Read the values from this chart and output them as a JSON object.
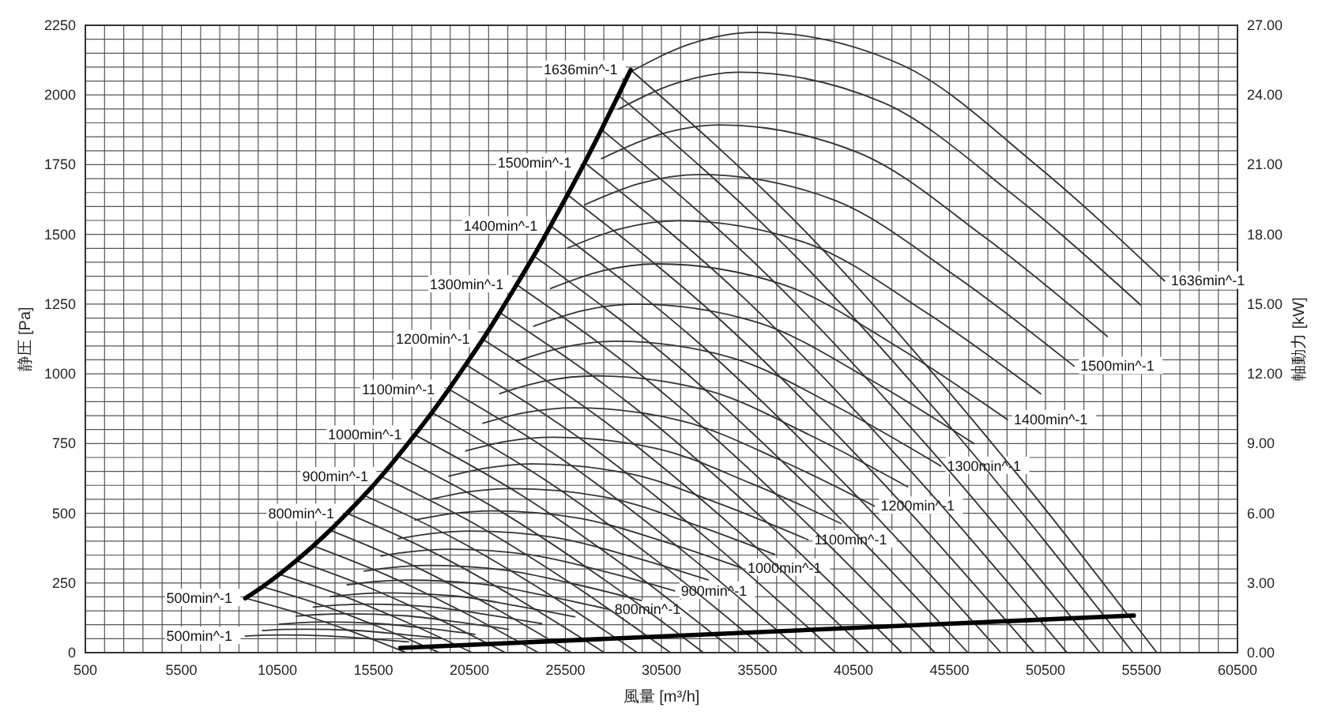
{
  "chart_data": {
    "type": "line",
    "xlabel": "風量 [m³/h]",
    "ylabel": "静圧 [Pa]",
    "y2label": "軸動力 [kW]",
    "grid": true,
    "xlim": [
      500,
      60500
    ],
    "ylim": [
      0,
      2250
    ],
    "y2lim": [
      0,
      27
    ],
    "xticks": [
      500,
      {
        "value": 1500,
        "label": null
      },
      {
        "value": 2500,
        "label": null
      },
      {
        "value": 3500,
        "label": null
      },
      {
        "value": 4500,
        "label": null
      },
      5500,
      {
        "value": 6500,
        "label": null
      },
      {
        "value": 7500,
        "label": null
      },
      {
        "value": 8500,
        "label": null
      },
      {
        "value": 9500,
        "label": null
      },
      10500,
      {
        "value": 11500,
        "label": null
      },
      {
        "value": 12500,
        "label": null
      },
      {
        "value": 13500,
        "label": null
      },
      {
        "value": 14500,
        "label": null
      },
      15500,
      {
        "value": 16500,
        "label": null
      },
      {
        "value": 17500,
        "label": null
      },
      {
        "value": 18500,
        "label": null
      },
      {
        "value": 19500,
        "label": null
      },
      20500,
      {
        "value": 21500,
        "label": null
      },
      {
        "value": 22500,
        "label": null
      },
      {
        "value": 23500,
        "label": null
      },
      {
        "value": 24500,
        "label": null
      },
      25500,
      {
        "value": 26500,
        "label": null
      },
      {
        "value": 27500,
        "label": null
      },
      {
        "value": 28500,
        "label": null
      },
      {
        "value": 29500,
        "label": null
      },
      30500,
      {
        "value": 31500,
        "label": null
      },
      {
        "value": 32500,
        "label": null
      },
      {
        "value": 33500,
        "label": null
      },
      {
        "value": 34500,
        "label": null
      },
      35500,
      {
        "value": 36500,
        "label": null
      },
      {
        "value": 37500,
        "label": null
      },
      {
        "value": 38500,
        "label": null
      },
      {
        "value": 39500,
        "label": null
      },
      40500,
      {
        "value": 41500,
        "label": null
      },
      {
        "value": 42500,
        "label": null
      },
      {
        "value": 43500,
        "label": null
      },
      {
        "value": 44500,
        "label": null
      },
      45500,
      {
        "value": 46500,
        "label": null
      },
      {
        "value": 47500,
        "label": null
      },
      {
        "value": 48500,
        "label": null
      },
      {
        "value": 49500,
        "label": null
      },
      50500,
      {
        "value": 51500,
        "label": null
      },
      {
        "value": 52500,
        "label": null
      },
      {
        "value": 53500,
        "label": null
      },
      {
        "value": 54500,
        "label": null
      },
      55500,
      {
        "value": 56500,
        "label": null
      },
      {
        "value": 57500,
        "label": null
      },
      {
        "value": 58500,
        "label": null
      },
      {
        "value": 59500,
        "label": null
      },
      60500
    ],
    "yticks": [
      0,
      {
        "value": 50,
        "label": null
      },
      {
        "value": 100,
        "label": null
      },
      {
        "value": 150,
        "label": null
      },
      {
        "value": 200,
        "label": null
      },
      250,
      {
        "value": 300,
        "label": null
      },
      {
        "value": 350,
        "label": null
      },
      {
        "value": 400,
        "label": null
      },
      {
        "value": 450,
        "label": null
      },
      500,
      {
        "value": 550,
        "label": null
      },
      {
        "value": 600,
        "label": null
      },
      {
        "value": 650,
        "label": null
      },
      {
        "value": 700,
        "label": null
      },
      750,
      {
        "value": 800,
        "label": null
      },
      {
        "value": 850,
        "label": null
      },
      {
        "value": 900,
        "label": null
      },
      {
        "value": 950,
        "label": null
      },
      1000,
      {
        "value": 1050,
        "label": null
      },
      {
        "value": 1100,
        "label": null
      },
      {
        "value": 1150,
        "label": null
      },
      {
        "value": 1200,
        "label": null
      },
      1250,
      {
        "value": 1300,
        "label": null
      },
      {
        "value": 1350,
        "label": null
      },
      {
        "value": 1400,
        "label": null
      },
      {
        "value": 1450,
        "label": null
      },
      1500,
      {
        "value": 1550,
        "label": null
      },
      {
        "value": 1600,
        "label": null
      },
      {
        "value": 1650,
        "label": null
      },
      {
        "value": 1700,
        "label": null
      },
      1750,
      {
        "value": 1800,
        "label": null
      },
      {
        "value": 1850,
        "label": null
      },
      {
        "value": 1900,
        "label": null
      },
      {
        "value": 1950,
        "label": null
      },
      2000,
      {
        "value": 2050,
        "label": null
      },
      {
        "value": 2100,
        "label": null
      },
      {
        "value": 2150,
        "label": null
      },
      {
        "value": 2200,
        "label": null
      },
      2250
    ],
    "y2ticks": [
      {
        "value": 0,
        "label": "0.00"
      },
      {
        "value": 3,
        "label": "3.00"
      },
      {
        "value": 6,
        "label": "6.00"
      },
      {
        "value": 9,
        "label": "9.00"
      },
      {
        "value": 12,
        "label": "12.00"
      },
      {
        "value": 15,
        "label": "15.00"
      },
      {
        "value": 18,
        "label": "18.00"
      },
      {
        "value": 21,
        "label": "21.00"
      },
      {
        "value": 24,
        "label": "24.00"
      },
      {
        "value": 27,
        "label": "27.00"
      }
    ],
    "series": [
      {
        "name": "500min^-1",
        "color": "#333333",
        "x": [
          8830,
          11610,
          14360,
          17210
        ],
        "values": [
          195,
          141,
          76,
          0
        ]
      },
      {
        "color": "#333333",
        "x": [
          9720,
          12780,
          15800,
          18930
        ],
        "values": [
          236,
          171,
          92,
          0
        ]
      },
      {
        "color": "#333333",
        "x": [
          10600,
          13930,
          17230,
          20640
        ],
        "values": [
          281,
          203,
          109,
          0
        ]
      },
      {
        "color": "#333333",
        "x": [
          11480,
          15100,
          18670,
          22370
        ],
        "values": [
          330,
          238,
          128,
          0
        ]
      },
      {
        "color": "#333333",
        "x": [
          12370,
          16260,
          20110,
          24090
        ],
        "values": [
          383,
          276,
          148,
          0
        ]
      },
      {
        "color": "#333333",
        "x": [
          13250,
          17420,
          21550,
          25810
        ],
        "values": [
          439,
          317,
          170,
          0
        ]
      },
      {
        "name": "800min^-1",
        "color": "#333333",
        "x": [
          14130,
          18580,
          22980,
          27530
        ],
        "values": [
          500,
          361,
          194,
          0
        ]
      },
      {
        "color": "#333333",
        "x": [
          15020,
          19750,
          24420,
          29250
        ],
        "values": [
          564,
          408,
          219,
          0
        ]
      },
      {
        "name": "900min^-1",
        "color": "#333333",
        "x": [
          15900,
          20900,
          25860,
          30970
        ],
        "values": [
          632,
          457,
          245,
          0
        ]
      },
      {
        "color": "#333333",
        "x": [
          16780,
          22070,
          27290,
          32690
        ],
        "values": [
          705,
          509,
          273,
          0
        ]
      },
      {
        "name": "1000min^-1",
        "color": "#333333",
        "x": [
          17660,
          23230,
          28730,
          34410
        ],
        "values": [
          781,
          564,
          303,
          0
        ]
      },
      {
        "color": "#333333",
        "x": [
          18550,
          24390,
          30170,
          36130
        ],
        "values": [
          861,
          622,
          334,
          0
        ]
      },
      {
        "name": "1100min^-1",
        "color": "#333333",
        "x": [
          19430,
          25550,
          31600,
          37860
        ],
        "values": [
          945,
          683,
          366,
          0
        ]
      },
      {
        "color": "#333333",
        "x": [
          20310,
          26710,
          33040,
          39570
        ],
        "values": [
          1033,
          746,
          400,
          0
        ]
      },
      {
        "name": "1200min^-1",
        "color": "#333333",
        "x": [
          21200,
          27870,
          34480,
          41300
        ],
        "values": [
          1124,
          812,
          436,
          0
        ]
      },
      {
        "color": "#333333",
        "x": [
          22080,
          29040,
          35910,
          43020
        ],
        "values": [
          1220,
          882,
          473,
          0
        ]
      },
      {
        "name": "1300min^-1",
        "color": "#333333",
        "x": [
          22960,
          30200,
          37350,
          44740
        ],
        "values": [
          1320,
          953,
          511,
          0
        ]
      },
      {
        "color": "#333333",
        "x": [
          23850,
          31360,
          38780,
          46460
        ],
        "values": [
          1423,
          1028,
          552,
          0
        ]
      },
      {
        "name": "1400min^-1",
        "color": "#333333",
        "x": [
          24730,
          32520,
          40220,
          48180
        ],
        "values": [
          1531,
          1106,
          593,
          0
        ]
      },
      {
        "color": "#333333",
        "x": [
          25610,
          33680,
          41660,
          49900
        ],
        "values": [
          1642,
          1186,
          636,
          0
        ]
      },
      {
        "name": "1500min^-1",
        "color": "#333333",
        "x": [
          26500,
          34840,
          43090,
          51620
        ],
        "values": [
          1757,
          1269,
          681,
          0
        ]
      },
      {
        "color": "#333333",
        "x": [
          27380,
          36000,
          44530,
          53340
        ],
        "values": [
          1876,
          1355,
          727,
          0
        ]
      },
      {
        "color": "#333333",
        "x": [
          28260,
          37160,
          45970,
          55060
        ],
        "values": [
          1999,
          1444,
          775,
          0
        ]
      },
      {
        "name": "1636min^-1",
        "color": "#333333",
        "x": [
          28900,
          38000,
          47000,
          56300
        ],
        "values": [
          2090,
          1510,
          810,
          0
        ]
      },
      {
        "name": "500min^-1",
        "color": "#333333",
        "axis": "y2",
        "x": [
          8830,
          9780,
          10820,
          13140,
          15280,
          17330
        ],
        "values": [
          0.71,
          0.75,
          0.76,
          0.72,
          0.6,
          0.46
        ]
      },
      {
        "color": "#333333",
        "axis": "y2",
        "x": [
          9720,
          10760,
          11900,
          14460,
          16810,
          19060
        ],
        "values": [
          0.95,
          1.0,
          1.01,
          0.96,
          0.8,
          0.61
        ]
      },
      {
        "color": "#333333",
        "axis": "y2",
        "x": [
          10600,
          11730,
          12980,
          15770,
          18340,
          20790
        ],
        "values": [
          1.23,
          1.29,
          1.32,
          1.25,
          1.04,
          0.79
        ]
      },
      {
        "color": "#333333",
        "axis": "y2",
        "x": [
          11480,
          12710,
          14070,
          17080,
          19870,
          22530
        ],
        "values": [
          1.57,
          1.64,
          1.67,
          1.59,
          1.32,
          1.0
        ]
      },
      {
        "color": "#333333",
        "axis": "y2",
        "x": [
          12370,
          13690,
          15150,
          18400,
          21400,
          24260
        ],
        "values": [
          1.96,
          2.05,
          2.09,
          1.98,
          1.64,
          1.25
        ]
      },
      {
        "color": "#333333",
        "axis": "y2",
        "x": [
          13250,
          14670,
          16230,
          19710,
          22920,
          25990
        ],
        "values": [
          2.41,
          2.52,
          2.57,
          2.44,
          2.02,
          1.54
        ]
      },
      {
        "name": "800min^-1",
        "color": "#333333",
        "axis": "y2",
        "x": [
          14130,
          15650,
          17310,
          21030,
          24450,
          27730
        ],
        "values": [
          2.92,
          3.06,
          3.12,
          2.96,
          2.45,
          1.87
        ]
      },
      {
        "color": "#333333",
        "axis": "y2",
        "x": [
          15020,
          16630,
          18390,
          22340,
          25980,
          29460
        ],
        "values": [
          3.51,
          3.68,
          3.75,
          3.55,
          2.95,
          2.24
        ]
      },
      {
        "name": "900min^-1",
        "color": "#333333",
        "axis": "y2",
        "x": [
          15900,
          17600,
          19470,
          23650,
          27510,
          31190
        ],
        "values": [
          4.16,
          4.36,
          4.45,
          4.21,
          3.5,
          2.66
        ]
      },
      {
        "color": "#333333",
        "axis": "y2",
        "x": [
          16780,
          18580,
          20560,
          24970,
          29040,
          32930
        ],
        "values": [
          4.9,
          5.13,
          5.23,
          4.95,
          4.11,
          3.13
        ]
      },
      {
        "name": "1000min^-1",
        "color": "#333333",
        "axis": "y2",
        "x": [
          17660,
          19560,
          21640,
          26280,
          30560,
          34660
        ],
        "values": [
          5.71,
          5.98,
          6.1,
          5.78,
          4.8,
          3.65
        ]
      },
      {
        "color": "#333333",
        "axis": "y2",
        "x": [
          18550,
          20540,
          22720,
          27600,
          32090,
          36390
        ],
        "values": [
          6.61,
          6.93,
          7.06,
          6.69,
          5.55,
          4.23
        ]
      },
      {
        "name": "1100min^-1",
        "color": "#333333",
        "axis": "y2",
        "x": [
          19430,
          21520,
          23800,
          28910,
          33620,
          38130
        ],
        "values": [
          7.6,
          7.96,
          8.12,
          7.69,
          6.38,
          4.86
        ]
      },
      {
        "color": "#333333",
        "axis": "y2",
        "x": [
          20310,
          22490,
          24880,
          30230,
          35150,
          39850
        ],
        "values": [
          8.68,
          9.1,
          9.27,
          8.79,
          7.29,
          5.56
        ]
      },
      {
        "name": "1200min^-1",
        "color": "#333333",
        "axis": "y2",
        "x": [
          21200,
          23470,
          25970,
          31540,
          36680,
          41590
        ],
        "values": [
          9.87,
          10.34,
          10.54,
          9.98,
          8.29,
          6.31
        ]
      },
      {
        "color": "#333333",
        "axis": "y2",
        "x": [
          22080,
          24450,
          27050,
          32860,
          38210,
          43320
        ],
        "values": [
          11.15,
          11.69,
          11.91,
          11.29,
          9.37,
          7.14
        ]
      },
      {
        "name": "1300min^-1",
        "color": "#333333",
        "axis": "y2",
        "x": [
          22960,
          25430,
          28130,
          34170,
          39730,
          45050
        ],
        "values": [
          12.54,
          13.15,
          13.4,
          12.69,
          10.54,
          8.03
        ]
      },
      {
        "color": "#333333",
        "axis": "y2",
        "x": [
          23850,
          26410,
          29210,
          35480,
          41260,
          46790
        ],
        "values": [
          14.05,
          14.72,
          15.0,
          14.22,
          11.8,
          8.99
        ]
      },
      {
        "name": "1400min^-1",
        "color": "#333333",
        "axis": "y2",
        "x": [
          24730,
          27380,
          30290,
          36800,
          42790,
          48520
        ],
        "values": [
          15.67,
          16.42,
          16.73,
          15.85,
          13.16,
          10.03
        ]
      },
      {
        "color": "#333333",
        "axis": "y2",
        "x": [
          25610,
          28360,
          31380,
          38110,
          44320,
          50250
        ],
        "values": [
          17.41,
          18.24,
          18.59,
          17.61,
          14.62,
          11.14
        ]
      },
      {
        "name": "1500min^-1",
        "color": "#333333",
        "axis": "y2",
        "x": [
          26500,
          29340,
          32460,
          39430,
          45850,
          51990
        ],
        "values": [
          19.27,
          20.19,
          20.58,
          19.5,
          16.19,
          12.33
        ]
      },
      {
        "color": "#333333",
        "axis": "y2",
        "x": [
          27380,
          30320,
          33540,
          40740,
          47370,
          53720
        ],
        "values": [
          21.26,
          22.28,
          22.71,
          21.52,
          17.86,
          13.61
        ]
      },
      {
        "color": "#333333",
        "axis": "y2",
        "x": [
          28260,
          31300,
          34620,
          42050,
          48900,
          55450
        ],
        "values": [
          23.39,
          24.51,
          24.98,
          23.67,
          19.65,
          14.97
        ]
      },
      {
        "name": "1636min^-1",
        "color": "#333333",
        "axis": "y2",
        "x": [
          28900,
          32000,
          35400,
          43000,
          50000,
          56700
        ],
        "values": [
          25.0,
          26.2,
          26.7,
          25.3,
          21.0,
          16.0
        ]
      },
      {
        "color": "#000000",
        "x": [
          8830,
          9720,
          10600,
          11480,
          12370,
          13250,
          14130,
          15020,
          15900,
          16780,
          17660,
          18550,
          19430,
          20310,
          21200,
          22080,
          22960,
          23850,
          24730,
          25610,
          26500,
          27380,
          28260,
          28900
        ],
        "values": [
          195,
          236,
          281,
          330,
          383,
          439,
          500,
          564,
          632,
          705,
          781,
          861,
          945,
          1033,
          1124,
          1220,
          1320,
          1423,
          1531,
          1642,
          1757,
          1876,
          1999,
          2090
        ]
      },
      {
        "color": "#000000",
        "x": [
          16900,
          55100
        ],
        "values": [
          17,
          133
        ]
      }
    ]
  }
}
